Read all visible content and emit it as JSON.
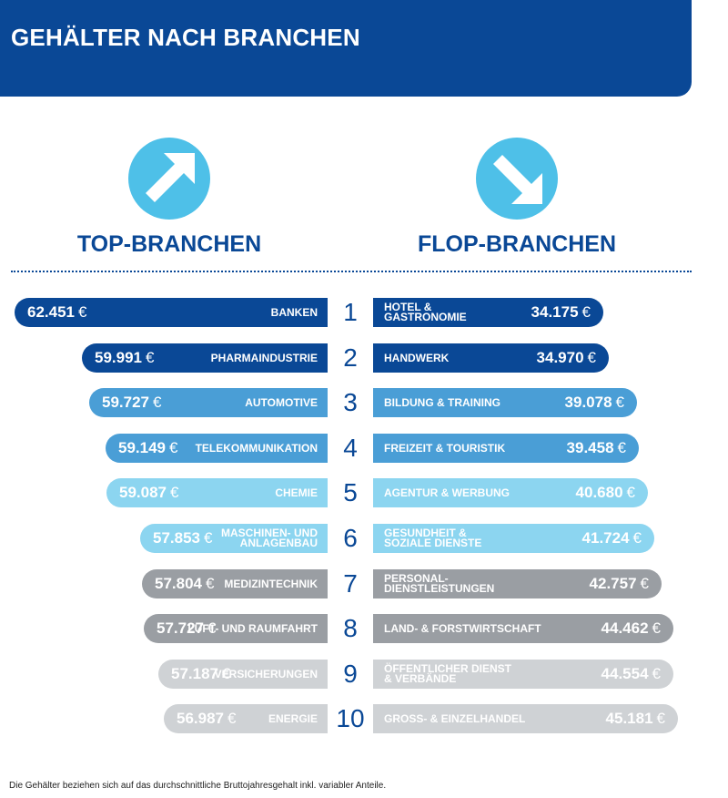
{
  "header": {
    "title": "GEHÄLTER NACH BRANCHEN"
  },
  "columns": {
    "top_title": "TOP-BRANCHEN",
    "flop_title": "FLOP-BRANCHEN"
  },
  "footnote": "Die Gehälter beziehen sich auf das durchschnittliche Bruttojahresgehalt inkl. variabler Anteile.",
  "colors": {
    "header": "#0a4896",
    "arrow": "#4ec0e8",
    "rank_text": "#0a4896",
    "tiers": [
      "#0a4896",
      "#0a4896",
      "#4a9ed6",
      "#4a9ed6",
      "#8cd5f0",
      "#8cd5f0",
      "#9a9ea3",
      "#9a9ea3",
      "#cfd2d5",
      "#cfd2d5"
    ]
  },
  "icons": {
    "top": "arrow-up-right-icon",
    "flop": "arrow-down-right-icon"
  },
  "chart_data": {
    "type": "bar",
    "currency": "€",
    "ranks": [
      "1",
      "2",
      "3",
      "4",
      "5",
      "6",
      "7",
      "8",
      "9",
      "10"
    ],
    "top": [
      {
        "label": [
          "BANKEN"
        ],
        "value": 62451,
        "display": "62.451"
      },
      {
        "label": [
          "PHARMAINDUSTRIE"
        ],
        "value": 59991,
        "display": "59.991"
      },
      {
        "label": [
          "AUTOMOTIVE"
        ],
        "value": 59727,
        "display": "59.727"
      },
      {
        "label": [
          "TELEKOMMUNIKATION"
        ],
        "value": 59149,
        "display": "59.149"
      },
      {
        "label": [
          "CHEMIE"
        ],
        "value": 59087,
        "display": "59.087"
      },
      {
        "label": [
          "MASCHINEN- UND",
          "ANLAGENBAU"
        ],
        "value": 57853,
        "display": "57.853"
      },
      {
        "label": [
          "MEDIZINTECHNIK"
        ],
        "value": 57804,
        "display": "57.804"
      },
      {
        "label": [
          "LUFT- UND RAUMFAHRT"
        ],
        "value": 57727,
        "display": "57.727"
      },
      {
        "label": [
          "VERSICHERUNGEN"
        ],
        "value": 57187,
        "display": "57.187"
      },
      {
        "label": [
          "ENERGIE"
        ],
        "value": 56987,
        "display": "56.987"
      }
    ],
    "flop": [
      {
        "label": [
          "HOTEL &",
          "GASTRONOMIE"
        ],
        "value": 34175,
        "display": "34.175"
      },
      {
        "label": [
          "HANDWERK"
        ],
        "value": 34970,
        "display": "34.970"
      },
      {
        "label": [
          "BILDUNG & TRAINING"
        ],
        "value": 39078,
        "display": "39.078"
      },
      {
        "label": [
          "FREIZEIT & TOURISTIK"
        ],
        "value": 39458,
        "display": "39.458"
      },
      {
        "label": [
          "AGENTUR & WERBUNG"
        ],
        "value": 40680,
        "display": "40.680"
      },
      {
        "label": [
          "GESUNDHEIT &",
          "SOZIALE DIENSTE"
        ],
        "value": 41724,
        "display": "41.724"
      },
      {
        "label": [
          "PERSONAL-",
          "DIENSTLEISTUNGEN"
        ],
        "value": 42757,
        "display": "42.757"
      },
      {
        "label": [
          "LAND- & FORSTWIRTSCHAFT"
        ],
        "value": 44462,
        "display": "44.462"
      },
      {
        "label": [
          "ÖFFENTLICHER DIENST",
          "& VERBÄNDE"
        ],
        "value": 44554,
        "display": "44.554"
      },
      {
        "label": [
          "GROSS- & EINZELHANDEL"
        ],
        "value": 45181,
        "display": "45.181"
      }
    ]
  }
}
